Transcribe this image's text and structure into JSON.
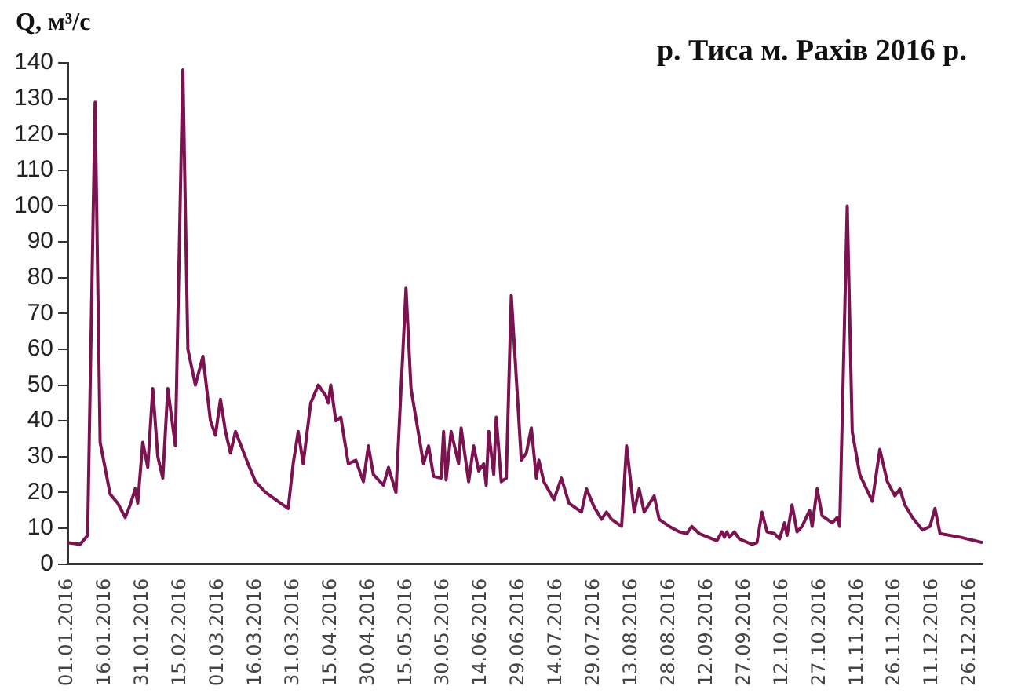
{
  "chart_data": {
    "type": "line",
    "title": "р. Тиса м. Рахів 2016 р.",
    "ylabel": "Q, м³/с",
    "x": [
      "2016-01-01",
      "2016-01-06",
      "2016-01-09",
      "2016-01-12",
      "2016-01-14",
      "2016-01-18",
      "2016-01-21",
      "2016-01-24",
      "2016-01-26",
      "2016-01-28",
      "2016-01-29",
      "2016-01-31",
      "2016-02-02",
      "2016-02-04",
      "2016-02-06",
      "2016-02-08",
      "2016-02-10",
      "2016-02-13",
      "2016-02-16",
      "2016-02-18",
      "2016-02-21",
      "2016-02-24",
      "2016-02-27",
      "2016-02-29",
      "2016-03-02",
      "2016-03-04",
      "2016-03-06",
      "2016-03-08",
      "2016-03-13",
      "2016-03-16",
      "2016-03-20",
      "2016-03-26",
      "2016-03-29",
      "2016-03-31",
      "2016-04-02",
      "2016-04-04",
      "2016-04-07",
      "2016-04-10",
      "2016-04-13",
      "2016-04-14",
      "2016-04-15",
      "2016-04-17",
      "2016-04-19",
      "2016-04-22",
      "2016-04-25",
      "2016-04-28",
      "2016-04-30",
      "2016-05-02",
      "2016-05-06",
      "2016-05-08",
      "2016-05-11",
      "2016-05-15",
      "2016-05-17",
      "2016-05-22",
      "2016-05-24",
      "2016-05-26",
      "2016-05-29",
      "2016-05-30",
      "2016-05-31",
      "2016-06-02",
      "2016-06-05",
      "2016-06-06",
      "2016-06-09",
      "2016-06-11",
      "2016-06-13",
      "2016-06-15",
      "2016-06-16",
      "2016-06-17",
      "2016-06-19",
      "2016-06-20",
      "2016-06-22",
      "2016-06-24",
      "2016-06-26",
      "2016-06-30",
      "2016-07-02",
      "2016-07-04",
      "2016-07-06",
      "2016-07-07",
      "2016-07-09",
      "2016-07-13",
      "2016-07-16",
      "2016-07-19",
      "2016-07-24",
      "2016-07-26",
      "2016-07-29",
      "2016-08-01",
      "2016-08-03",
      "2016-08-05",
      "2016-08-09",
      "2016-08-11",
      "2016-08-14",
      "2016-08-16",
      "2016-08-18",
      "2016-08-22",
      "2016-08-24",
      "2016-08-28",
      "2016-09-01",
      "2016-09-04",
      "2016-09-06",
      "2016-09-09",
      "2016-09-16",
      "2016-09-18",
      "2016-09-19",
      "2016-09-20",
      "2016-09-21",
      "2016-09-23",
      "2016-09-25",
      "2016-09-30",
      "2016-10-02",
      "2016-10-04",
      "2016-10-06",
      "2016-10-09",
      "2016-10-11",
      "2016-10-13",
      "2016-10-14",
      "2016-10-16",
      "2016-10-18",
      "2016-10-20",
      "2016-10-23",
      "2016-10-24",
      "2016-10-26",
      "2016-10-28",
      "2016-11-01",
      "2016-11-03",
      "2016-11-04",
      "2016-11-07",
      "2016-11-09",
      "2016-11-12",
      "2016-11-17",
      "2016-11-20",
      "2016-11-23",
      "2016-11-26",
      "2016-11-28",
      "2016-11-30",
      "2016-12-03",
      "2016-12-07",
      "2016-12-10",
      "2016-12-12",
      "2016-12-14",
      "2016-12-22",
      "2016-12-31"
    ],
    "series": [
      {
        "color": "#7b1350",
        "values": [
          6,
          5.5,
          8,
          129,
          34,
          19.5,
          17,
          13,
          16.5,
          21,
          17,
          34,
          27,
          49,
          30,
          24,
          49,
          33,
          138,
          60,
          50,
          58,
          40,
          36,
          46,
          37,
          31,
          37,
          28,
          23,
          20,
          17,
          15.5,
          28,
          37,
          28,
          45,
          50,
          47,
          45,
          50,
          40,
          41,
          28,
          29,
          23,
          33,
          25,
          22,
          27,
          20,
          77,
          49,
          28,
          33,
          24.5,
          24,
          37,
          23.5,
          37,
          28,
          38,
          23,
          33,
          26,
          28,
          22,
          37,
          25,
          41,
          23,
          24,
          75,
          29,
          31,
          38,
          24,
          29,
          23,
          18,
          24,
          17,
          14.5,
          21,
          16,
          12.5,
          14.5,
          12.5,
          10.5,
          33,
          14.5,
          21,
          14.5,
          19,
          12.5,
          10.5,
          9,
          8.5,
          10.5,
          8.5,
          6.5,
          9,
          7.5,
          9,
          7.5,
          9,
          7,
          5.5,
          6,
          14.5,
          9,
          8.5,
          7,
          11.5,
          8,
          16.5,
          9,
          10.5,
          15,
          10.5,
          21,
          13.5,
          11.5,
          13,
          10.5,
          100,
          37,
          25,
          17.5,
          32,
          23,
          19,
          21,
          16.5,
          13,
          9.5,
          10.5,
          15.5,
          8.5,
          7.5,
          6
        ]
      }
    ],
    "xlim": [
      "2016-01-01",
      "2016-12-31"
    ],
    "xticks": [
      {
        "value": "2016-01-01",
        "label": "01.01.2016"
      },
      {
        "value": "2016-01-16",
        "label": "16.01.2016"
      },
      {
        "value": "2016-01-31",
        "label": "31.01.2016"
      },
      {
        "value": "2016-02-15",
        "label": "15.02.2016"
      },
      {
        "value": "2016-03-01",
        "label": "01.03.2016"
      },
      {
        "value": "2016-03-16",
        "label": "16.03.2016"
      },
      {
        "value": "2016-03-31",
        "label": "31.03.2016"
      },
      {
        "value": "2016-04-15",
        "label": "15.04.2016"
      },
      {
        "value": "2016-04-30",
        "label": "30.04.2016"
      },
      {
        "value": "2016-05-15",
        "label": "15.05.2016"
      },
      {
        "value": "2016-05-30",
        "label": "30.05.2016"
      },
      {
        "value": "2016-06-14",
        "label": "14.06.2016"
      },
      {
        "value": "2016-06-29",
        "label": "29.06.2016"
      },
      {
        "value": "2016-07-14",
        "label": "14.07.2016"
      },
      {
        "value": "2016-07-29",
        "label": "29.07.2016"
      },
      {
        "value": "2016-08-13",
        "label": "13.08.2016"
      },
      {
        "value": "2016-08-28",
        "label": "28.08.2016"
      },
      {
        "value": "2016-09-12",
        "label": "12.09.2016"
      },
      {
        "value": "2016-09-27",
        "label": "27.09.2016"
      },
      {
        "value": "2016-10-12",
        "label": "12.10.2016"
      },
      {
        "value": "2016-10-27",
        "label": "27.10.2016"
      },
      {
        "value": "2016-11-11",
        "label": "11.11.2016"
      },
      {
        "value": "2016-11-26",
        "label": "26.11.2016"
      },
      {
        "value": "2016-12-11",
        "label": "11.12.2016"
      },
      {
        "value": "2016-12-26",
        "label": "26.12.2016"
      }
    ],
    "ylim": [
      0,
      140
    ],
    "yticks": [
      0,
      10,
      20,
      30,
      40,
      50,
      60,
      70,
      80,
      90,
      100,
      110,
      120,
      130,
      140
    ],
    "grid": false,
    "legend": false,
    "marker": "none",
    "line_style": "solid"
  }
}
